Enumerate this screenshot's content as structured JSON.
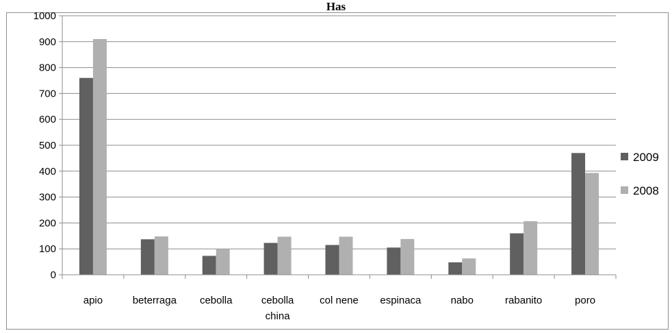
{
  "chart_data": {
    "type": "bar",
    "title": "Has",
    "xlabel": "",
    "ylabel": "",
    "ylim": [
      0,
      1000
    ],
    "yticks": [
      0,
      100,
      200,
      300,
      400,
      500,
      600,
      700,
      800,
      900,
      1000
    ],
    "grid": true,
    "legend": "right",
    "categories": [
      "apio",
      "beterraga",
      "cebolla",
      "cebolla china",
      "col nene",
      "espinaca",
      "nabo",
      "rabanito",
      "poro"
    ],
    "category_lines": [
      [
        "apio"
      ],
      [
        "beterraga"
      ],
      [
        "cebolla"
      ],
      [
        "cebolla",
        "china"
      ],
      [
        "col nene"
      ],
      [
        "espinaca"
      ],
      [
        "nabo"
      ],
      [
        "rabanito"
      ],
      [
        "poro"
      ]
    ],
    "series": [
      {
        "name": "2009",
        "color": "#606060",
        "values": [
          760,
          137,
          73,
          123,
          115,
          105,
          48,
          160,
          470
        ]
      },
      {
        "name": "2008",
        "color": "#b0b0b0",
        "values": [
          910,
          148,
          100,
          147,
          147,
          138,
          63,
          207,
          393
        ]
      }
    ]
  }
}
